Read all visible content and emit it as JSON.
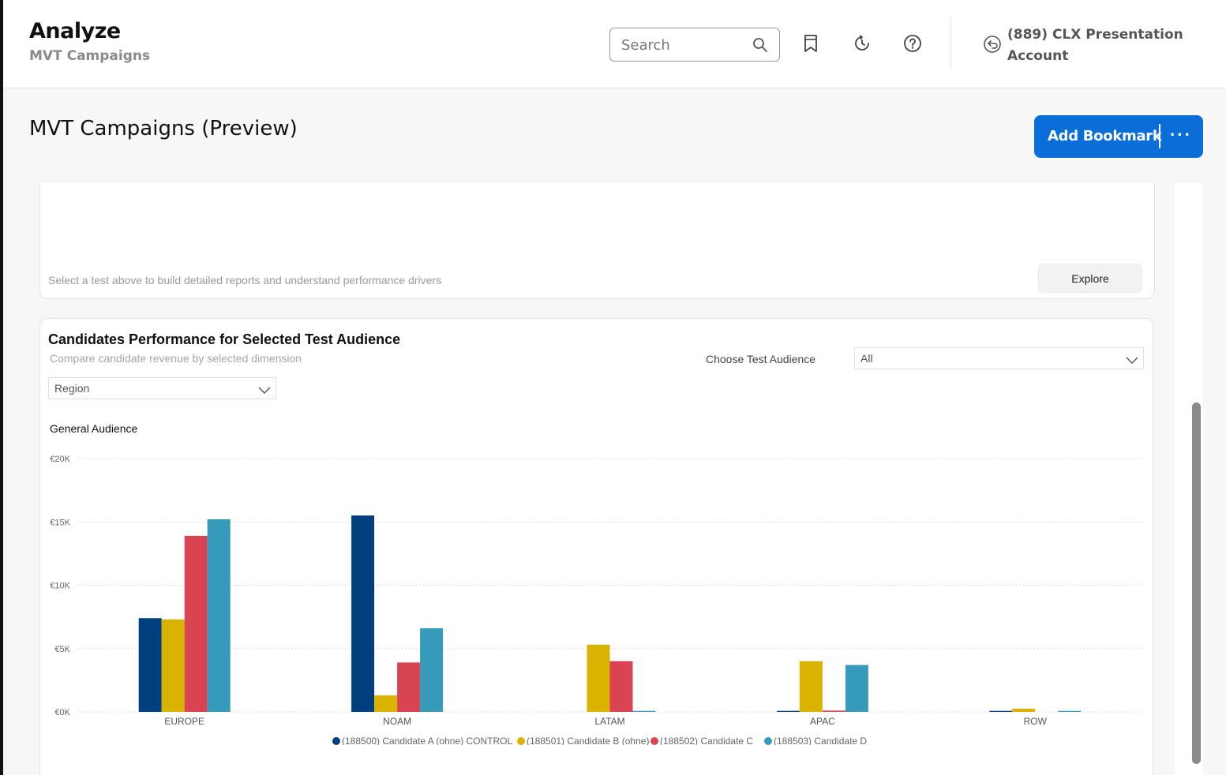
{
  "header": {
    "title": "Analyze",
    "subtitle": "MVT Campaigns",
    "search_placeholder": "Search",
    "icons": [
      "bookmark-icon",
      "history-icon",
      "help-icon"
    ],
    "account_icon": "switch-account-icon",
    "account_name": "(889) CLX Presentation Account"
  },
  "page": {
    "title": "MVT Campaigns (Preview)",
    "add_bookmark_label": "Add Bookmark",
    "more_label": "···",
    "accent_color": "#0a6ed8"
  },
  "card_explore": {
    "hint": "Select a test above to build detailed reports and understand performance drivers",
    "explore_label": "Explore"
  },
  "card_candidates": {
    "title": "Candidates Performance for Selected Test Audience",
    "subtitle": "Compare candidate revenue by selected dimension",
    "audience_label": "Choose Test Audience",
    "audience_value": "All",
    "dimension_value": "Region",
    "chart_heading": "General Audience"
  },
  "chart_data": {
    "type": "bar",
    "title": "General Audience",
    "xlabel": "",
    "ylabel": "",
    "ylim": [
      0,
      20000
    ],
    "yticks": [
      "€0K",
      "€5K",
      "€10K",
      "€15K",
      "€20K"
    ],
    "ytick_values": [
      0,
      5000,
      10000,
      15000,
      20000
    ],
    "categories": [
      "EUROPE",
      "NOAM",
      "LATAM",
      "APAC",
      "ROW"
    ],
    "grid": true,
    "legend_position": "bottom",
    "series": [
      {
        "name": "(188500) Candidate A (ohne) CONTROL",
        "color": "#003f7d",
        "values": [
          7400,
          15500,
          0,
          80,
          80
        ]
      },
      {
        "name": "(188501) Candidate B (ohne)",
        "color": "#d9b300",
        "values": [
          7300,
          1300,
          5300,
          4000,
          250
        ]
      },
      {
        "name": "(188502) Candidate C",
        "color": "#d94452",
        "values": [
          13900,
          3900,
          4000,
          100,
          0
        ]
      },
      {
        "name": "(188503) Candidate D",
        "color": "#369bba",
        "values": [
          15200,
          6600,
          80,
          3700,
          80
        ]
      }
    ]
  }
}
